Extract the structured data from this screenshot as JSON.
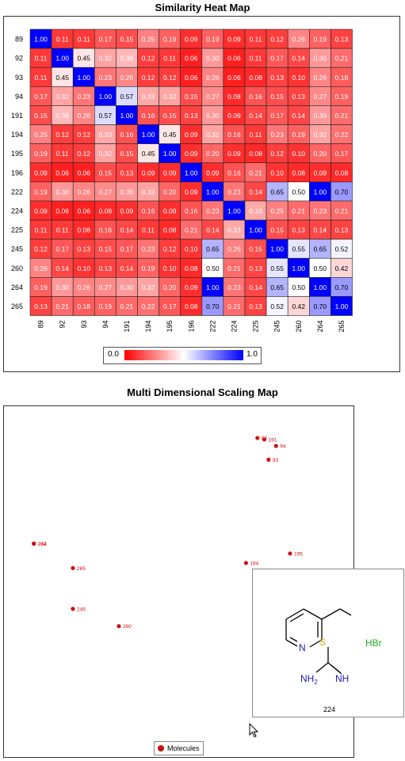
{
  "heatmap": {
    "title": "Similarity Heat Map",
    "legend": {
      "min_label": "0.0",
      "max_label": "1.0"
    }
  },
  "mds": {
    "title": "Multi Dimensional Scaling Map",
    "legend_label": "Molecules",
    "tooltip": {
      "label": "224",
      "hbr": "HBr",
      "atoms": {
        "n": "N",
        "s": "S",
        "nh2": "NH",
        "nh2_sub": "2",
        "nh": "NH"
      }
    }
  },
  "chart_data": [
    {
      "type": "heatmap",
      "title": "Similarity Heat Map",
      "labels": [
        "89",
        "92",
        "93",
        "94",
        "191",
        "194",
        "195",
        "196",
        "222",
        "224",
        "225",
        "245",
        "260",
        "264",
        "265"
      ],
      "colorscale": {
        "min": 0.0,
        "max": 1.0,
        "low": "#ff0000",
        "mid": "#ffffff",
        "high": "#0000ff"
      },
      "matrix": [
        [
          "1.00",
          "0.11",
          "0.11",
          "0.17",
          "0.15",
          "0.25",
          "0.19",
          "0.09",
          "0.19",
          "0.09",
          "0.11",
          "0.12",
          "0.26",
          "0.19",
          "0.13"
        ],
        [
          "0.11",
          "1.00",
          "0.45",
          "0.32",
          "0.36",
          "0.12",
          "0.11",
          "0.06",
          "0.30",
          "0.06",
          "0.11",
          "0.17",
          "0.14",
          "0.30",
          "0.21"
        ],
        [
          "0.11",
          "0.45",
          "1.00",
          "0.23",
          "0.26",
          "0.12",
          "0.12",
          "0.06",
          "0.26",
          "0.06",
          "0.08",
          "0.13",
          "0.10",
          "0.26",
          "0.18"
        ],
        [
          "0.17",
          "0.32",
          "0.23",
          "1.00",
          "0.57",
          "0.33",
          "0.32",
          "0.15",
          "0.27",
          "0.08",
          "0.16",
          "0.15",
          "0.13",
          "0.27",
          "0.19"
        ],
        [
          "0.15",
          "0.36",
          "0.26",
          "0.57",
          "1.00",
          "0.16",
          "0.15",
          "0.13",
          "0.30",
          "0.09",
          "0.14",
          "0.17",
          "0.14",
          "0.30",
          "0.21"
        ],
        [
          "0.25",
          "0.12",
          "0.12",
          "0.33",
          "0.16",
          "1.00",
          "0.45",
          "0.09",
          "0.32",
          "0.16",
          "0.11",
          "0.23",
          "0.19",
          "0.32",
          "0.22"
        ],
        [
          "0.19",
          "0.11",
          "0.12",
          "0.32",
          "0.15",
          "0.45",
          "1.00",
          "0.09",
          "0.20",
          "0.09",
          "0.08",
          "0.12",
          "0.10",
          "0.20",
          "0.17"
        ],
        [
          "0.09",
          "0.06",
          "0.06",
          "0.15",
          "0.13",
          "0.09",
          "0.09",
          "1.00",
          "0.09",
          "0.16",
          "0.21",
          "0.10",
          "0.08",
          "0.09",
          "0.08"
        ],
        [
          "0.19",
          "0.30",
          "0.26",
          "0.27",
          "0.30",
          "0.32",
          "0.20",
          "0.09",
          "1.00",
          "0.23",
          "0.14",
          "0.65",
          "0.50",
          "1.00",
          "0.70"
        ],
        [
          "0.09",
          "0.06",
          "0.06",
          "0.08",
          "0.09",
          "0.16",
          "0.09",
          "0.16",
          "0.23",
          "1.00",
          "0.33",
          "0.25",
          "0.21",
          "0.23",
          "0.21"
        ],
        [
          "0.11",
          "0.11",
          "0.08",
          "0.16",
          "0.14",
          "0.11",
          "0.08",
          "0.21",
          "0.14",
          "0.33",
          "1.00",
          "0.15",
          "0.13",
          "0.14",
          "0.13"
        ],
        [
          "0.12",
          "0.17",
          "0.13",
          "0.15",
          "0.17",
          "0.23",
          "0.12",
          "0.10",
          "0.65",
          "0.25",
          "0.15",
          "1.00",
          "0.55",
          "0.65",
          "0.52"
        ],
        [
          "0.26",
          "0.14",
          "0.10",
          "0.13",
          "0.14",
          "0.19",
          "0.10",
          "0.08",
          "0.50",
          "0.21",
          "0.13",
          "0.55",
          "1.00",
          "0.50",
          "0.42"
        ],
        [
          "0.19",
          "0.30",
          "0.26",
          "0.27",
          "0.30",
          "0.32",
          "0.20",
          "0.09",
          "1.00",
          "0.23",
          "0.14",
          "0.65",
          "0.50",
          "1.00",
          "0.70"
        ],
        [
          "0.13",
          "0.21",
          "0.18",
          "0.19",
          "0.21",
          "0.22",
          "0.17",
          "0.08",
          "0.70",
          "0.21",
          "0.13",
          "0.52",
          "0.42",
          "0.70",
          "1.00"
        ]
      ]
    },
    {
      "type": "scatter",
      "title": "Multi Dimensional Scaling Map",
      "series": [
        {
          "name": "Molecules",
          "color": "#cc1111"
        }
      ],
      "grid": false,
      "points": [
        {
          "label": "92",
          "x": 0.877,
          "y": 0.96
        },
        {
          "label": "191",
          "x": 0.903,
          "y": 0.955
        },
        {
          "label": "94",
          "x": 0.947,
          "y": 0.933
        },
        {
          "label": "93",
          "x": 0.919,
          "y": 0.887
        },
        {
          "label": "222",
          "x": 0.035,
          "y": 0.605
        },
        {
          "label": "264",
          "x": 0.035,
          "y": 0.605
        },
        {
          "label": "195",
          "x": 1.0,
          "y": 0.572
        },
        {
          "label": "194",
          "x": 0.834,
          "y": 0.54
        },
        {
          "label": "265",
          "x": 0.182,
          "y": 0.523
        },
        {
          "label": "245",
          "x": 0.182,
          "y": 0.386
        },
        {
          "label": "260",
          "x": 0.355,
          "y": 0.328
        },
        {
          "label": "224",
          "x": 0.864,
          "y": 0.054
        }
      ]
    }
  ]
}
